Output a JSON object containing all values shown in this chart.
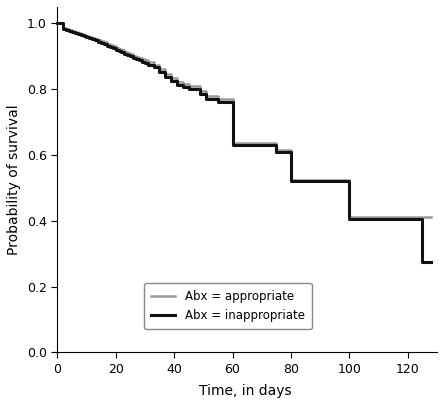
{
  "title": "",
  "xlabel": "Time, in days",
  "ylabel": "Probability of survival",
  "xlim": [
    -1,
    130
  ],
  "ylim": [
    0.0,
    1.05
  ],
  "xticks": [
    0,
    20,
    40,
    60,
    80,
    100,
    120
  ],
  "yticks": [
    0.0,
    0.2,
    0.4,
    0.6,
    0.8,
    1.0
  ],
  "legend_labels": [
    "Abx = appropriate",
    "Abx = inappropriate"
  ],
  "legend_colors": [
    "#999999",
    "#111111"
  ],
  "legend_linewidths": [
    1.8,
    2.2
  ],
  "background_color": "#ffffff",
  "appropriate_x": [
    0,
    2,
    3,
    4,
    5,
    6,
    7,
    8,
    9,
    10,
    11,
    12,
    13,
    14,
    15,
    16,
    17,
    18,
    19,
    20,
    21,
    22,
    23,
    24,
    25,
    26,
    27,
    28,
    29,
    30,
    31,
    33,
    35,
    37,
    39,
    41,
    43,
    45,
    47,
    49,
    51,
    55,
    60,
    65,
    70,
    75,
    80,
    85,
    90,
    95,
    100,
    105,
    110,
    115,
    120,
    125,
    128
  ],
  "appropriate_y": [
    1.0,
    0.985,
    0.982,
    0.979,
    0.976,
    0.973,
    0.97,
    0.967,
    0.964,
    0.961,
    0.958,
    0.955,
    0.952,
    0.949,
    0.946,
    0.942,
    0.938,
    0.934,
    0.93,
    0.926,
    0.922,
    0.918,
    0.914,
    0.91,
    0.906,
    0.902,
    0.898,
    0.895,
    0.892,
    0.888,
    0.884,
    0.875,
    0.862,
    0.845,
    0.833,
    0.822,
    0.815,
    0.81,
    0.81,
    0.795,
    0.78,
    0.77,
    0.635,
    0.635,
    0.635,
    0.615,
    0.525,
    0.525,
    0.525,
    0.525,
    0.41,
    0.41,
    0.41,
    0.41,
    0.41,
    0.41,
    0.41
  ],
  "inappropriate_x": [
    0,
    2,
    3,
    4,
    5,
    6,
    7,
    8,
    9,
    10,
    11,
    12,
    13,
    14,
    15,
    16,
    17,
    18,
    19,
    20,
    21,
    22,
    23,
    24,
    25,
    26,
    27,
    28,
    29,
    30,
    31,
    33,
    35,
    37,
    39,
    41,
    43,
    45,
    47,
    49,
    51,
    55,
    60,
    65,
    70,
    75,
    80,
    85,
    90,
    95,
    100,
    105,
    110,
    115,
    120,
    125,
    128
  ],
  "inappropriate_y": [
    1.0,
    0.982,
    0.979,
    0.976,
    0.973,
    0.97,
    0.967,
    0.964,
    0.961,
    0.958,
    0.955,
    0.952,
    0.948,
    0.944,
    0.94,
    0.936,
    0.932,
    0.928,
    0.924,
    0.92,
    0.916,
    0.912,
    0.908,
    0.904,
    0.9,
    0.896,
    0.892,
    0.888,
    0.884,
    0.88,
    0.875,
    0.866,
    0.853,
    0.836,
    0.824,
    0.813,
    0.806,
    0.8,
    0.8,
    0.785,
    0.77,
    0.76,
    0.63,
    0.63,
    0.63,
    0.61,
    0.52,
    0.52,
    0.52,
    0.52,
    0.405,
    0.405,
    0.405,
    0.405,
    0.405,
    0.275,
    0.275
  ]
}
